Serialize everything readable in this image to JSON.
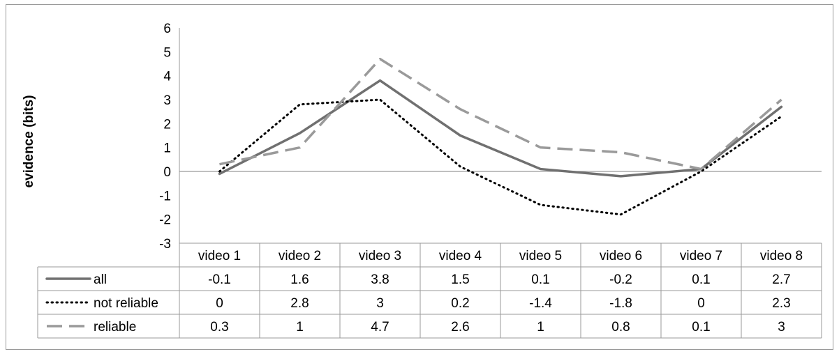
{
  "chart_data": {
    "type": "line",
    "title": "",
    "xlabel": "",
    "ylabel": "evidence (bits)",
    "ylim": [
      -3,
      6
    ],
    "yticks": [
      6,
      5,
      4,
      3,
      2,
      1,
      0,
      -1,
      -2,
      -3
    ],
    "categories": [
      "video 1",
      "video 2",
      "video 3",
      "video 4",
      "video 5",
      "video 6",
      "video 7",
      "video 8"
    ],
    "grid": false,
    "legend": "data-table-below",
    "series": [
      {
        "name": "all",
        "style": "solid",
        "color": "#707070",
        "values": [
          -0.1,
          1.6,
          3.8,
          1.5,
          0.1,
          -0.2,
          0.1,
          2.7
        ]
      },
      {
        "name": "not reliable",
        "style": "dotted",
        "color": "#000000",
        "values": [
          0,
          2.8,
          3,
          0.2,
          -1.4,
          -1.8,
          0,
          2.3
        ]
      },
      {
        "name": "reliable",
        "style": "dashed",
        "color": "#9a9a9a",
        "values": [
          0.3,
          1,
          4.7,
          2.6,
          1,
          0.8,
          0.1,
          3
        ]
      }
    ],
    "table_values": [
      [
        "-0.1",
        "1.6",
        "3.8",
        "1.5",
        "0.1",
        "-0.2",
        "0.1",
        "2.7"
      ],
      [
        "0",
        "2.8",
        "3",
        "0.2",
        "-1.4",
        "-1.8",
        "0",
        "2.3"
      ],
      [
        "0.3",
        "1",
        "4.7",
        "2.6",
        "1",
        "0.8",
        "0.1",
        "3"
      ]
    ]
  }
}
